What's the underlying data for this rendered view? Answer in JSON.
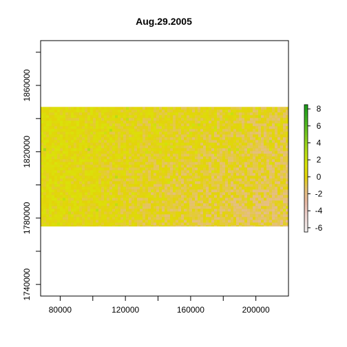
{
  "chart_data": {
    "type": "heatmap",
    "title": "Aug.29.2005",
    "xlabel": "",
    "ylabel": "",
    "xlim": [
      68000,
      220000
    ],
    "ylim": [
      1733000,
      1887000
    ],
    "x_ticks": [
      80000,
      100000,
      120000,
      140000,
      160000,
      180000,
      200000
    ],
    "x_tick_labels": [
      "80000",
      "120000",
      "160000",
      "200000"
    ],
    "y_ticks": [
      1740000,
      1760000,
      1780000,
      1800000,
      1820000,
      1840000,
      1860000,
      1880000
    ],
    "y_tick_labels": [
      "1740000",
      "1780000",
      "1820000",
      "1860000"
    ],
    "raster_extent": {
      "xmin": 68000,
      "xmax": 220000,
      "ymin": 1775000,
      "ymax": 1847000
    },
    "legend": {
      "position": "right",
      "range": [
        -6.5,
        8.5
      ],
      "ticks": [
        -6,
        -4,
        -2,
        0,
        2,
        4,
        6,
        8
      ],
      "tick_labels": [
        "-6",
        "-4",
        "-2",
        "0",
        "2",
        "4",
        "6",
        "8"
      ],
      "colors": [
        {
          "value": -6.5,
          "color": "#f2f2f2"
        },
        {
          "value": -4.5,
          "color": "#edd3d0"
        },
        {
          "value": -3,
          "color": "#e8b8a6"
        },
        {
          "value": -1.5,
          "color": "#e5c078"
        },
        {
          "value": 0,
          "color": "#e3d30a"
        },
        {
          "value": 1.5,
          "color": "#d9e30a"
        },
        {
          "value": 3,
          "color": "#b5dc16"
        },
        {
          "value": 5,
          "color": "#78c820"
        },
        {
          "value": 7,
          "color": "#3aae20"
        },
        {
          "value": 8.5,
          "color": "#1a9a1a"
        }
      ]
    },
    "grid": false
  }
}
